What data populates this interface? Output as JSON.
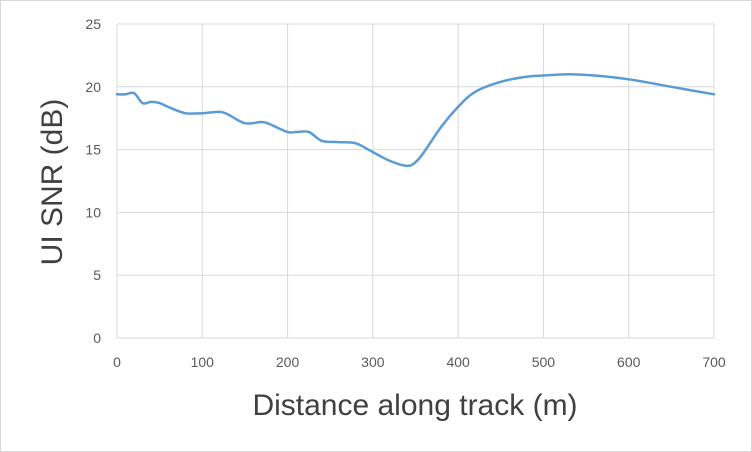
{
  "chart_data": {
    "type": "line",
    "title": "",
    "xlabel": "Distance along track (m)",
    "ylabel": "UI SNR (dB)",
    "xlim": [
      0,
      700
    ],
    "ylim": [
      0,
      25
    ],
    "xticks": [
      0,
      100,
      200,
      300,
      400,
      500,
      600,
      700
    ],
    "yticks": [
      0,
      5,
      10,
      15,
      20,
      25
    ],
    "xtick_labels": [
      "0",
      "100",
      "200",
      "300",
      "400",
      "500",
      "600",
      "700"
    ],
    "ytick_labels": [
      "0",
      "5",
      "10",
      "15",
      "20",
      "25"
    ],
    "grid": true,
    "legend": "none",
    "series": [
      {
        "color": "#5b9bd5",
        "x": [
          0,
          10,
          20,
          30,
          40,
          50,
          60,
          80,
          100,
          120,
          130,
          150,
          170,
          180,
          200,
          210,
          225,
          240,
          260,
          280,
          300,
          320,
          340,
          350,
          360,
          380,
          400,
          420,
          450,
          480,
          500,
          530,
          560,
          600,
          650,
          700
        ],
        "y": [
          19.4,
          19.4,
          19.5,
          18.7,
          18.8,
          18.7,
          18.4,
          17.9,
          17.9,
          18.0,
          17.8,
          17.1,
          17.2,
          17.0,
          16.4,
          16.4,
          16.4,
          15.7,
          15.6,
          15.5,
          14.8,
          14.1,
          13.7,
          14.0,
          14.8,
          16.8,
          18.4,
          19.6,
          20.4,
          20.8,
          20.9,
          21.0,
          20.9,
          20.6,
          20.0,
          19.4
        ]
      }
    ]
  }
}
